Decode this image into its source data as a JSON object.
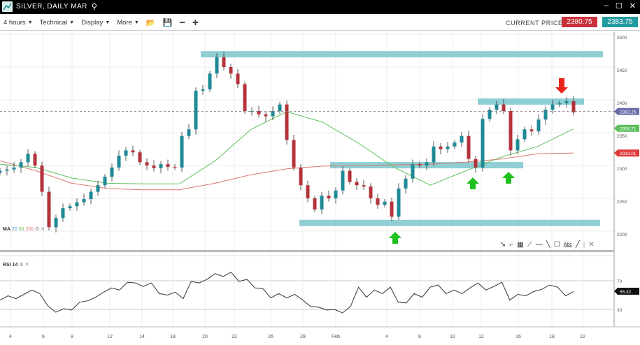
{
  "window": {
    "title": "SILVER, DAILY MAR",
    "search_icon": "search-icon",
    "minimize": "–",
    "maximize": "☐",
    "close": "✕"
  },
  "toolbar": {
    "interval": "4 hours",
    "technical": "Technical",
    "display": "Display",
    "more": "More",
    "open_icon": "folder-icon",
    "save_icon": "save-icon",
    "zoom_out": "−",
    "zoom_in": "+"
  },
  "price": {
    "label": "CURRENT PRICE:",
    "bid": "2380.75",
    "ask": "2383.75",
    "bid_color": "#c9303b",
    "ask_color": "#229aa0"
  },
  "indicators": {
    "ma_label": "MA",
    "ma_periods": [
      "20",
      "50",
      "200"
    ],
    "rsi_label": "RSI 14"
  },
  "drawing_tools": [
    "cursor-icon",
    "curve-icon",
    "fibonacci-icon",
    "fan-icon",
    "horizontal-line-icon",
    "trend-line-icon",
    "rectangle-icon",
    "text-icon",
    "line-icon",
    "close-icon"
  ],
  "drawing_text": "Abc",
  "chart_data": {
    "type": "candlestick",
    "y_ticks": [
      "2500",
      "2450",
      "2400",
      "2350",
      "2300",
      "2250",
      "2200"
    ],
    "ylim": [
      2180,
      2510
    ],
    "x_ticks": [
      "4",
      "6",
      "8",
      "12",
      "14",
      "18",
      "20",
      "22",
      "26",
      "28",
      "Feb",
      "4",
      "8",
      "10",
      "12",
      "16",
      "18",
      "22"
    ],
    "closes": [
      2292,
      2294,
      2297,
      2305,
      2318,
      2300,
      2260,
      2206,
      2220,
      2235,
      2238,
      2244,
      2249,
      2260,
      2270,
      2283,
      2297,
      2315,
      2323,
      2320,
      2305,
      2300,
      2296,
      2302,
      2298,
      2297,
      2345,
      2355,
      2414,
      2416,
      2440,
      2465,
      2450,
      2440,
      2424,
      2383,
      2383,
      2378,
      2375,
      2383,
      2393,
      2339,
      2297,
      2270,
      2250,
      2233,
      2254,
      2250,
      2262,
      2292,
      2275,
      2270,
      2268,
      2250,
      2240,
      2245,
      2222,
      2265,
      2280,
      2302,
      2300,
      2305,
      2329,
      2325,
      2329,
      2335,
      2345,
      2310,
      2297,
      2371,
      2385,
      2393,
      2383,
      2323,
      2340,
      2355,
      2352,
      2370,
      2385,
      2393,
      2395,
      2398,
      2381
    ],
    "ma50": [
      2302,
      2297,
      2281,
      2273,
      2272,
      2272,
      2307,
      2355,
      2382,
      2366,
      2334,
      2297,
      2270,
      2292,
      2313,
      2329,
      2356
    ],
    "ma200": [
      2307,
      2292,
      2273,
      2265,
      2263,
      2263,
      2273,
      2286,
      2295,
      2299,
      2300,
      2301,
      2302,
      2305,
      2310,
      2318,
      2319
    ],
    "ma50_color": "#5cbf5c",
    "ma200_color": "#d9776e",
    "zones": [
      2470,
      2398,
      2301,
      2213
    ],
    "zone_color": "#8fcfd3",
    "arrows": [
      {
        "dir": "up",
        "color": "#1fc01f"
      },
      {
        "dir": "up",
        "color": "#1fc01f"
      },
      {
        "dir": "up",
        "color": "#1fc01f"
      },
      {
        "dir": "down",
        "color": "#e8231d"
      }
    ],
    "last_price": "2382.25",
    "ma50_last": "2356.71",
    "ma200_last": "2319.01",
    "last_color": "#6a6aa8",
    "rsi": {
      "ticks": [
        "70",
        "30"
      ],
      "current": "55.32",
      "values": [
        43,
        49,
        45,
        51,
        57,
        52,
        35,
        26,
        31,
        29,
        40,
        42,
        47,
        54,
        60,
        57,
        68,
        67,
        62,
        67,
        52,
        50,
        54,
        45,
        69,
        67,
        72,
        80,
        76,
        82,
        69,
        72,
        60,
        59,
        46,
        52,
        46,
        51,
        43,
        34,
        33,
        29,
        30,
        25,
        34,
        61,
        47,
        57,
        52,
        61,
        40,
        39,
        52,
        47,
        61,
        64,
        52,
        57,
        52,
        60,
        67,
        57,
        62,
        68,
        43,
        51,
        49,
        55,
        58,
        64,
        61,
        49,
        55
      ]
    }
  }
}
